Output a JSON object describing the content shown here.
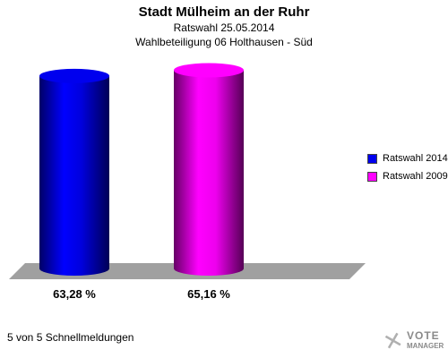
{
  "header": {
    "title": "Stadt Mülheim an der Ruhr",
    "subtitle1": "Ratswahl 25.05.2014",
    "subtitle2": "Wahlbeteiligung 06 Holthausen - Süd"
  },
  "chart_data": {
    "type": "bar",
    "categories": [
      "Ratswahl 2014",
      "Ratswahl 2009"
    ],
    "values": [
      63.28,
      65.16
    ],
    "value_labels": [
      "63,28 %",
      "65,16 %"
    ],
    "colors": [
      "#0000ee",
      "#ff00ff"
    ],
    "ylim": [
      0,
      70
    ],
    "legend_position": "right",
    "grid": false
  },
  "legend": {
    "items": [
      {
        "label": "Ratswahl 2014",
        "color": "#0000ee"
      },
      {
        "label": "Ratswahl 2009",
        "color": "#ff00ff"
      }
    ]
  },
  "footer": {
    "text": "5 von 5 Schnellmeldungen"
  },
  "logo": {
    "line1": "VOTE",
    "line2": "MANAGER"
  }
}
